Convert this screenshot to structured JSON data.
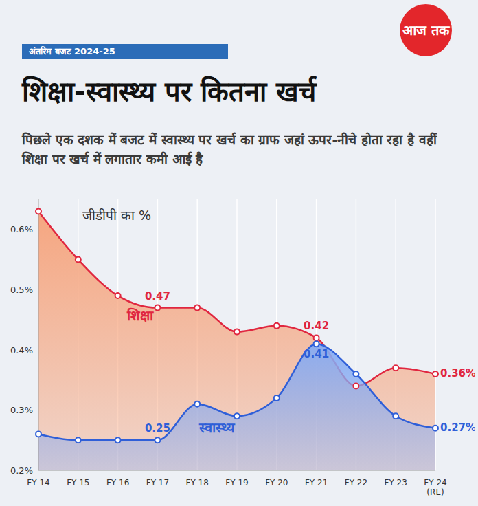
{
  "chart_data": {
    "type": "area",
    "header_tag": "अंतरिम बजट 2024-25",
    "logo": "आज तक",
    "title": "शिक्षा-स्वास्थ्य पर कितना खर्च",
    "subtitle": "पिछले एक दशक में बजट में स्वास्थ्य पर खर्च का ग्राफ जहां ऊपर-नीचे होता रहा है वहीं शिक्षा पर खर्च में लगातार कमी आई है",
    "y_label": "जीडीपी का %",
    "categories": [
      "FY 14",
      "FY 15",
      "FY 16",
      "FY 17",
      "FY 18",
      "FY 19",
      "FY 20",
      "FY 21",
      "FY 22",
      "FY 23",
      "FY 24 (RE)"
    ],
    "series": [
      {
        "name": "शिक्षा",
        "color": "#e0263f",
        "marker": "circle",
        "values": [
          0.63,
          0.55,
          0.49,
          0.47,
          0.47,
          0.43,
          0.44,
          0.42,
          0.34,
          0.37,
          0.36
        ],
        "value_labels": [
          null,
          null,
          null,
          "0.47",
          null,
          null,
          null,
          "0.42",
          null,
          null,
          "0.36%"
        ]
      },
      {
        "name": "स्वास्थ्य",
        "color": "#2f5fd8",
        "marker": "circle",
        "values": [
          0.26,
          0.25,
          0.25,
          0.25,
          0.31,
          0.29,
          0.32,
          0.41,
          0.36,
          0.29,
          0.27
        ],
        "value_labels": [
          null,
          null,
          null,
          "0.25",
          null,
          null,
          null,
          "0.41",
          null,
          null,
          "0.27%"
        ]
      }
    ],
    "ylim": [
      0.2,
      0.65
    ],
    "yticks": [
      {
        "value": 0.2,
        "label": "0.2%"
      },
      {
        "value": 0.3,
        "label": "0.3%"
      },
      {
        "value": 0.4,
        "label": "0.4%"
      },
      {
        "value": 0.5,
        "label": "0.5%"
      },
      {
        "value": 0.6,
        "label": "0.6%"
      }
    ],
    "grid": true
  }
}
